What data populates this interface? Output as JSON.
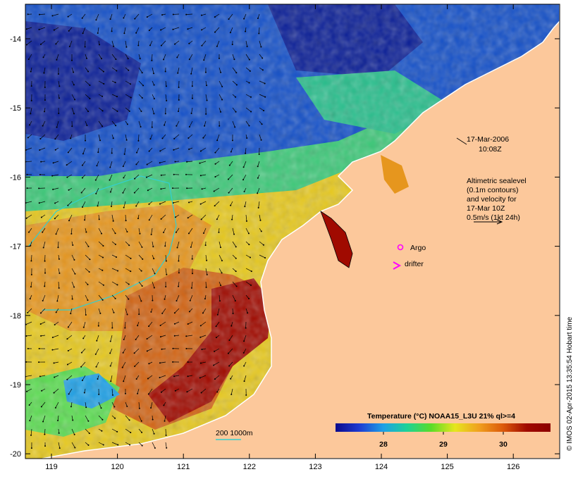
{
  "map": {
    "date_line1": "17-Mar-2006",
    "date_line2": "10:08Z",
    "altimetry": [
      "Altimetric sealevel",
      "(0.1m contours)",
      "and velocity for",
      "17-Mar 10Z",
      "0.5m/s (1kt 24h)"
    ],
    "argo_label": "Argo",
    "drifter_label": "drifter",
    "isobath_label": "200  1000m",
    "credit": "© IMOS 02-Apr-2015 13:35:54 Hobart time",
    "lat_ticks": [
      "-14",
      "-15",
      "-16",
      "-17",
      "-18",
      "-19",
      "-20"
    ],
    "lon_ticks": [
      "119",
      "120",
      "121",
      "122",
      "123",
      "124",
      "125",
      "126"
    ],
    "colors": {
      "land": "#fcc89b",
      "argo": "#ff00ff",
      "drifter": "#ff00ff",
      "isobath": "#33d0d0"
    }
  },
  "colorbar": {
    "title": "Temperature (°C) NOAA15_L3U 21% ql>=4",
    "ticks": [
      "28",
      "29",
      "30"
    ],
    "stops": [
      "#0a0a8c",
      "#1e3cd2",
      "#1ea0e6",
      "#1ed296",
      "#5adc28",
      "#e6e61e",
      "#f0a01e",
      "#dc5a0a",
      "#a00a00",
      "#8c0000"
    ]
  }
}
